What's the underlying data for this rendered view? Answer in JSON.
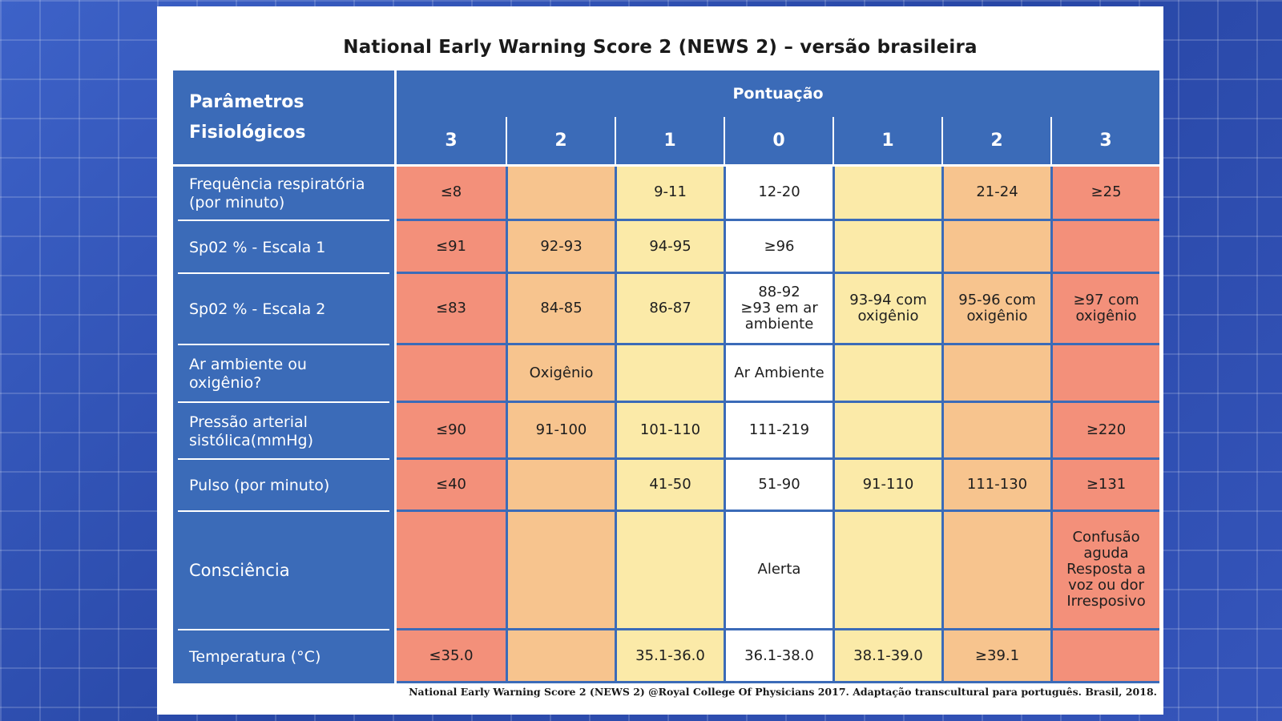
{
  "title": "National Early Warning Score 2 (NEWS 2) – versão brasileira",
  "header": {
    "parameters_label": "Parâmetros Fisiológicos",
    "score_group_label": "Pontuação",
    "scores": [
      "3",
      "2",
      "1",
      "0",
      "1",
      "2",
      "3"
    ]
  },
  "colors": {
    "header_blue": "#3b6bb8",
    "score_3": "#f3907a",
    "score_2": "#f7c48e",
    "score_1": "#fbeaa8",
    "score_0": "#ffffff"
  },
  "rows": [
    {
      "parameter": "Frequência respiratória (por minuto)",
      "cells": [
        "≤8",
        "",
        "9-11",
        "12-20",
        "",
        "21-24",
        "≥25"
      ]
    },
    {
      "parameter": "Sp02  % - Escala 1",
      "cells": [
        "≤91",
        "92-93",
        "94-95",
        "≥96",
        "",
        "",
        ""
      ]
    },
    {
      "parameter": "Sp02 % - Escala 2",
      "cells": [
        "≤83",
        "84-85",
        "86-87",
        "88-92\n≥93 em ar ambiente",
        "93-94 com oxigênio",
        "95-96 com oxigênio",
        "≥97 com oxigênio"
      ]
    },
    {
      "parameter": "Ar ambiente ou oxigênio?",
      "cells": [
        "",
        "Oxigênio",
        "",
        "Ar Ambiente",
        "",
        "",
        ""
      ]
    },
    {
      "parameter": "Pressão arterial sistólica(mmHg)",
      "cells": [
        "≤90",
        "91-100",
        "101-110",
        "111-219",
        "",
        "",
        "≥220"
      ]
    },
    {
      "parameter": "Pulso (por minuto)",
      "cells": [
        "≤40",
        "",
        "41-50",
        "51-90",
        "91-110",
        "111-130",
        "≥131"
      ]
    },
    {
      "parameter": "Consciência",
      "cells": [
        "",
        "",
        "",
        "Alerta",
        "",
        "",
        "Confusão aguda Resposta a voz ou dor Irresposivo"
      ]
    },
    {
      "parameter": "Temperatura (°C)",
      "cells": [
        "≤35.0",
        "",
        "35.1-36.0",
        "36.1-38.0",
        "38.1-39.0",
        "≥39.1",
        ""
      ]
    }
  ],
  "footer": "National Early Warning Score 2 (NEWS 2) @Royal College Of Physicians 2017. Adaptação transcultural para português. Brasil, 2018."
}
